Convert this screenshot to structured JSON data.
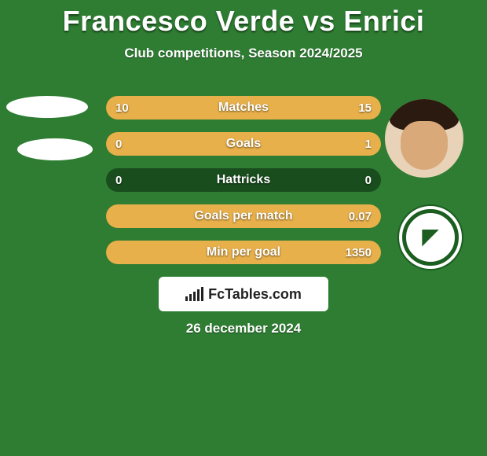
{
  "colors": {
    "background": "#2e7d32",
    "text": "#ffffff",
    "row_bg": "#194d1e",
    "fill_left": "#e8b04a",
    "fill_right": "#e8b04a",
    "logo_bg": "#ffffff",
    "logo_text": "#222222"
  },
  "title": "Francesco Verde vs Enrici",
  "subtitle": "Club competitions, Season 2024/2025",
  "date": "26 december 2024",
  "logo": "FcTables.com",
  "stats": [
    {
      "label": "Matches",
      "left_text": "10",
      "right_text": "15",
      "left_pct": 40,
      "right_pct": 60
    },
    {
      "label": "Goals",
      "left_text": "0",
      "right_text": "1",
      "left_pct": 0,
      "right_pct": 100
    },
    {
      "label": "Hattricks",
      "left_text": "0",
      "right_text": "0",
      "left_pct": 0,
      "right_pct": 0
    },
    {
      "label": "Goals per match",
      "left_text": "",
      "right_text": "0.07",
      "left_pct": 0,
      "right_pct": 100
    },
    {
      "label": "Min per goal",
      "left_text": "",
      "right_text": "1350",
      "left_pct": 0,
      "right_pct": 100
    }
  ],
  "logo_bar_heights": [
    6,
    9,
    12,
    15,
    18
  ]
}
